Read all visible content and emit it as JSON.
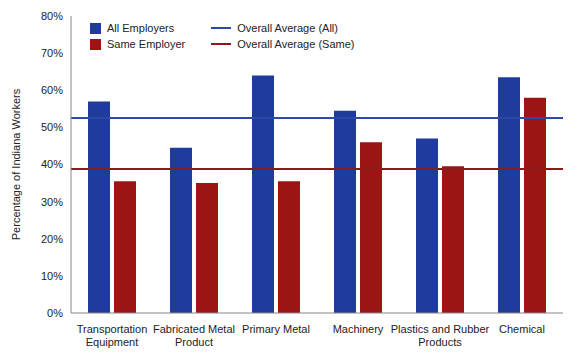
{
  "chart_data": {
    "type": "bar",
    "categories": [
      "Transportation Equipment",
      "Fabricated Metal Product",
      "Primary Metal",
      "Machinery",
      "Plastics and Rubber Products",
      "Chemical"
    ],
    "y_label": "Percentage of Indiana Workers",
    "ylim": [
      0,
      80
    ],
    "yticks": [
      {
        "value": 0,
        "label": "0%"
      },
      {
        "value": 10,
        "label": "10%"
      },
      {
        "value": 20,
        "label": "20%"
      },
      {
        "value": 30,
        "label": "30%"
      },
      {
        "value": 40,
        "label": "40%"
      },
      {
        "value": 50,
        "label": "50%"
      },
      {
        "value": 60,
        "label": "60%"
      },
      {
        "value": 70,
        "label": "70%"
      },
      {
        "value": 80,
        "label": "80%"
      }
    ],
    "legend": "upper left",
    "series": [
      {
        "name": "All Employers",
        "color": "#1f3c9c",
        "values": [
          57,
          44.5,
          64,
          54.5,
          47,
          63.5
        ]
      },
      {
        "name": "Same Employer",
        "color": "#9c1414",
        "values": [
          35.5,
          35,
          35.5,
          46,
          39.5,
          58
        ]
      },
      {
        "name": "Overall Average (All)",
        "type": "hline",
        "color": "#2b4aa6",
        "value": 52.5
      },
      {
        "name": "Overall Average (Same)",
        "type": "hline",
        "color": "#8b1a1a",
        "value": 38.8
      }
    ]
  }
}
